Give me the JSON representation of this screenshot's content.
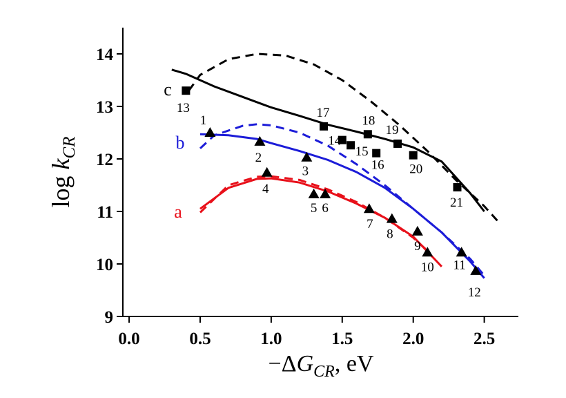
{
  "chart_data": {
    "type": "line",
    "x_label": [
      "−Δ",
      "G",
      "CR",
      ", eV"
    ],
    "y_label": [
      "log ",
      "k",
      "CR"
    ],
    "xlim": [
      -0.044,
      2.74
    ],
    "ylim": [
      9,
      14.5
    ],
    "xticks": [
      {
        "value": 0,
        "label": "0.0"
      },
      0.5,
      {
        "value": 1,
        "label": "1.0"
      },
      1.5,
      {
        "value": 2,
        "label": "2.0"
      },
      2.5
    ],
    "yticks": [
      9,
      10,
      11,
      12,
      13,
      14
    ],
    "series": [
      {
        "name": "a",
        "color": "#e8101a",
        "dash": false,
        "x": [
          0.5,
          0.7,
          0.9,
          1.0,
          1.2,
          1.4,
          1.6,
          1.8,
          2.0,
          2.2
        ],
        "values": [
          11.05,
          11.45,
          11.62,
          11.63,
          11.55,
          11.38,
          11.15,
          10.88,
          10.52,
          9.95
        ]
      },
      {
        "color": "#e8101a",
        "dash": true,
        "x": [
          0.5,
          0.7,
          0.9,
          1.0,
          1.2,
          1.4,
          1.6,
          1.8,
          2.0,
          2.1
        ],
        "values": [
          10.98,
          11.5,
          11.66,
          11.67,
          11.6,
          11.42,
          11.18,
          10.88,
          10.5,
          10.25
        ]
      },
      {
        "name": "b",
        "color": "#1c1cd8",
        "dash": false,
        "x": [
          0.5,
          0.7,
          0.9,
          1.0,
          1.2,
          1.4,
          1.6,
          1.8,
          2.0,
          2.2,
          2.4,
          2.5
        ],
        "values": [
          12.47,
          12.45,
          12.38,
          12.3,
          12.15,
          11.98,
          11.75,
          11.45,
          11.05,
          10.6,
          10.05,
          9.73
        ]
      },
      {
        "color": "#1c1cd8",
        "dash": true,
        "x": [
          0.5,
          0.6,
          0.8,
          0.9,
          1.0,
          1.2,
          1.4,
          1.6,
          1.8,
          2.0,
          2.2,
          2.4,
          2.5
        ],
        "values": [
          12.2,
          12.45,
          12.63,
          12.66,
          12.64,
          12.5,
          12.25,
          11.9,
          11.5,
          11.05,
          10.6,
          10.1,
          9.78
        ]
      },
      {
        "name": "c",
        "color": "#000000",
        "dash": false,
        "x": [
          0.3,
          0.4,
          0.6,
          0.8,
          1.0,
          1.2,
          1.4,
          1.6,
          1.8,
          2.0,
          2.2,
          2.4,
          2.5
        ],
        "values": [
          13.7,
          13.62,
          13.38,
          13.18,
          12.98,
          12.82,
          12.65,
          12.52,
          12.38,
          12.22,
          11.95,
          11.35,
          11.0
        ]
      },
      {
        "color": "#000000",
        "dash": true,
        "x": [
          0.42,
          0.5,
          0.7,
          0.9,
          1.1,
          1.3,
          1.5,
          1.7,
          1.9,
          2.1,
          2.3,
          2.5,
          2.6
        ],
        "values": [
          13.3,
          13.6,
          13.9,
          14.0,
          13.97,
          13.8,
          13.5,
          13.1,
          12.65,
          12.15,
          11.6,
          11.1,
          10.8
        ]
      }
    ],
    "markers": [
      {
        "marker": "triangle",
        "color": "#000000",
        "labels": [
          "1",
          "2",
          "3",
          "4",
          "5",
          "6",
          "7",
          "8",
          "9",
          "10",
          "11",
          "12"
        ],
        "x": [
          0.57,
          0.92,
          1.25,
          0.97,
          1.3,
          1.38,
          1.69,
          1.85,
          2.03,
          2.1,
          2.34,
          2.44
        ],
        "values": [
          12.5,
          12.33,
          12.03,
          11.74,
          11.33,
          11.33,
          11.05,
          10.86,
          10.62,
          10.22,
          10.22,
          9.87
        ]
      },
      {
        "marker": "square",
        "color": "#000000",
        "labels": [
          "13",
          "14",
          "15",
          "16",
          "17",
          "18",
          "19",
          "20",
          "21"
        ],
        "x": [
          0.4,
          1.5,
          1.56,
          1.74,
          1.37,
          1.68,
          1.89,
          2.0,
          2.31
        ],
        "values": [
          13.3,
          12.36,
          12.26,
          12.11,
          12.62,
          12.47,
          12.29,
          12.07,
          11.46
        ]
      }
    ]
  }
}
